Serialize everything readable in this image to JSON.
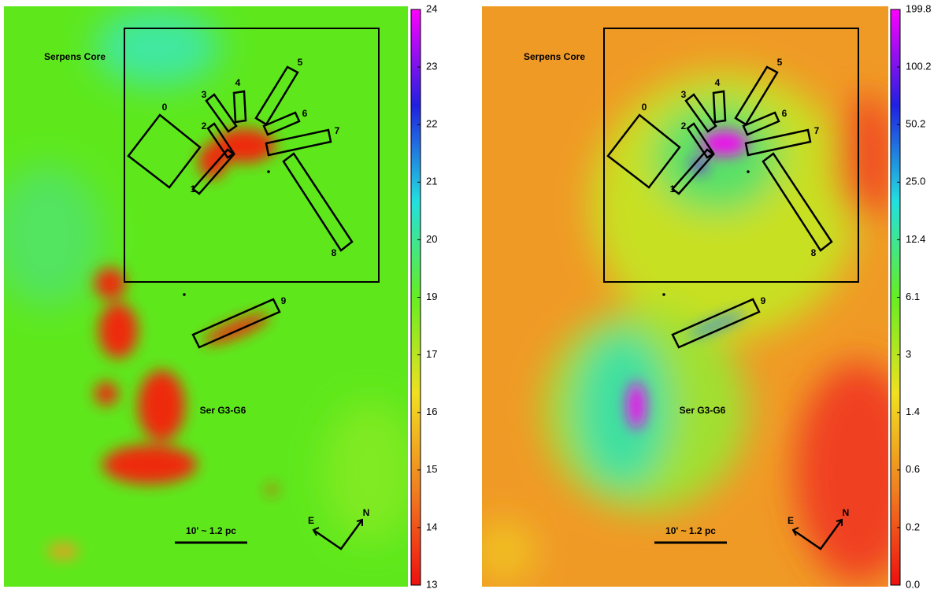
{
  "chart_data": [
    {
      "type": "map",
      "colormap": [
        "#ee1010",
        "#f08020",
        "#f0e020",
        "#66ee22",
        "#22e0e0",
        "#2020e0",
        "#ff00ff"
      ],
      "field_label": "Serpens Core",
      "cloud_label": "Ser G3-G6",
      "scale_bar": "10' ~ 1.2 pc",
      "east": "E",
      "north": "N",
      "regions": [
        "0",
        "1",
        "2",
        "3",
        "4",
        "5",
        "6",
        "7",
        "8",
        "9"
      ],
      "yticks": [
        24,
        23,
        22,
        21,
        20,
        19,
        17,
        16,
        15,
        14,
        13
      ]
    },
    {
      "type": "map",
      "colormap": [
        "#ee1010",
        "#f08020",
        "#f0e020",
        "#66ee22",
        "#22e0e0",
        "#2020e0",
        "#ff00ff"
      ],
      "field_label": "Serpens Core",
      "cloud_label": "Ser G3-G6",
      "scale_bar": "10' ~ 1.2 pc",
      "east": "E",
      "north": "N",
      "regions": [
        "0",
        "1",
        "2",
        "3",
        "4",
        "5",
        "6",
        "7",
        "8",
        "9"
      ],
      "yticks": [
        199.8,
        100.2,
        50.2,
        {
          "value": 25,
          "label": "25.0"
        },
        12.4,
        6.1,
        3.0,
        1.4,
        0.6,
        0.2,
        {
          "value": 0,
          "label": "0.0"
        }
      ]
    }
  ]
}
